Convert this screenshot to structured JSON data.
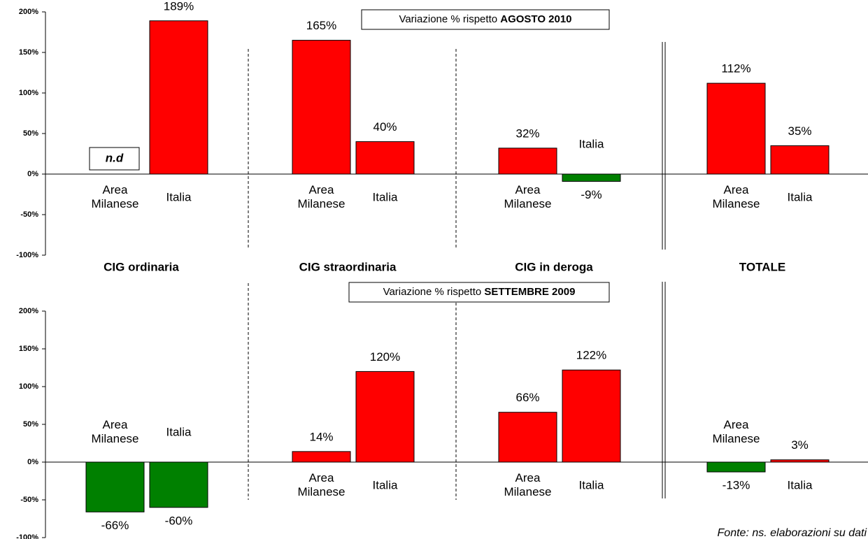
{
  "chart_data": [
    {
      "type": "bar",
      "title": [
        "Variazione % rispetto",
        "AGOSTO 2010"
      ],
      "series": [
        {
          "name": "Area Milanese",
          "values": [
            null,
            165,
            32,
            112
          ],
          "value_labels": [
            "n.d",
            "165%",
            "32%",
            "112%"
          ]
        },
        {
          "name": "Italia",
          "values": [
            189,
            40,
            -9,
            35
          ],
          "value_labels": [
            "189%",
            "40%",
            "-9%",
            "35%"
          ]
        }
      ],
      "ylim": [
        -100,
        200
      ],
      "yticks": [
        {
          "value": -100,
          "label": "-100%"
        },
        {
          "value": -50,
          "label": "-50%"
        },
        {
          "value": 0,
          "label": "0%"
        },
        {
          "value": 50,
          "label": "50%"
        },
        {
          "value": 100,
          "label": "100%"
        },
        {
          "value": 150,
          "label": "150%"
        },
        {
          "value": 200,
          "label": "200%"
        }
      ],
      "colors": {
        "positive": "#ff0000",
        "negative": "#008000"
      }
    },
    {
      "type": "bar",
      "title": [
        "Variazione % rispetto",
        "SETTEMBRE 2009"
      ],
      "series": [
        {
          "name": "Area Milanese",
          "values": [
            -66,
            14,
            66,
            -13
          ],
          "value_labels": [
            "-66%",
            "14%",
            "66%",
            "-13%"
          ]
        },
        {
          "name": "Italia",
          "values": [
            -60,
            120,
            122,
            3
          ],
          "value_labels": [
            "-60%",
            "120%",
            "122%",
            "3%"
          ]
        }
      ],
      "ylim": [
        -100,
        200
      ],
      "yticks": [
        {
          "value": -100,
          "label": "-100%"
        },
        {
          "value": -50,
          "label": "-50%"
        },
        {
          "value": 0,
          "label": "0%"
        },
        {
          "value": 50,
          "label": "50%"
        },
        {
          "value": 100,
          "label": "100%"
        },
        {
          "value": 150,
          "label": "150%"
        },
        {
          "value": 200,
          "label": "200%"
        }
      ],
      "colors": {
        "positive": "#ff0000",
        "negative": "#008000"
      }
    }
  ],
  "groups": [
    "CIG ordinaria",
    "CIG straordinaria",
    "CIG in deroga",
    "TOTALE"
  ],
  "source": "Fonte: ns. elaborazioni su dati"
}
